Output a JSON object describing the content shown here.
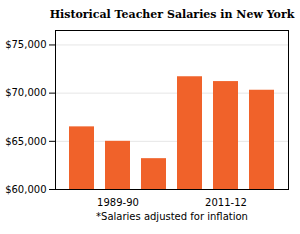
{
  "chart_data": {
    "type": "bar",
    "title": "Historical Teacher Salaries in New York",
    "categories": [
      null,
      "1989-90",
      null,
      null,
      "2011-12",
      null
    ],
    "values": [
      66500,
      65000,
      63200,
      71700,
      71200,
      70300
    ],
    "color": "#F0622A",
    "ylim": [
      60000,
      76500
    ],
    "yticks": [
      {
        "value": 60000,
        "label": "$60,000"
      },
      {
        "value": 65000,
        "label": "$65,000"
      },
      {
        "value": 70000,
        "label": "$70,000"
      },
      {
        "value": 75000,
        "label": "$75,000"
      }
    ],
    "annotation": "*Salaries adjusted for inflation",
    "grid": true
  }
}
